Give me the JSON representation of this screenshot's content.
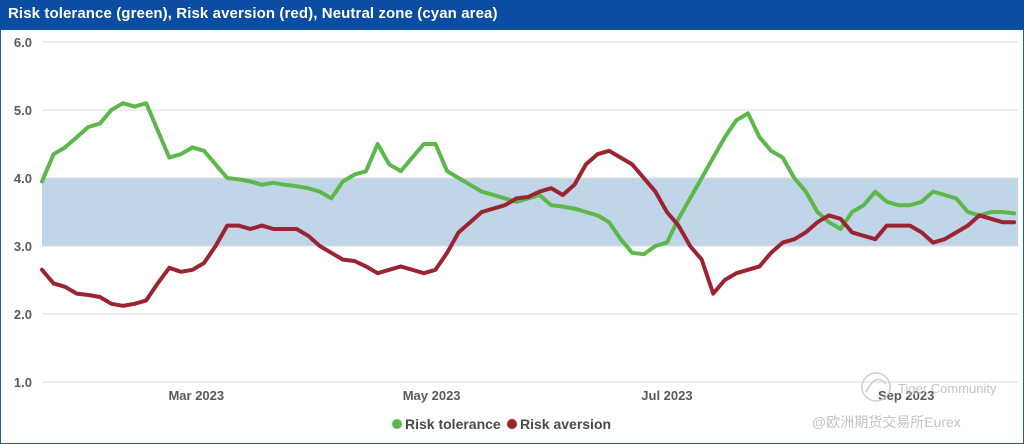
{
  "title": "Risk tolerance (green), Risk aversion (red), Neutral zone (cyan area)",
  "colors": {
    "title_bg": "#0a4da2",
    "green": "#5cb84b",
    "red": "#9b2433",
    "band": "#c1d5e8",
    "grid": "#dcdcdc"
  },
  "watermark": {
    "line1": "Tiger Community",
    "line2": "@欧洲期货交易所Eurex"
  },
  "chart_data": {
    "type": "line",
    "ylim": [
      1.0,
      6.0
    ],
    "y_ticks": [
      {
        "label": "1.0",
        "value": 1.0
      },
      {
        "label": "2.0",
        "value": 2.0
      },
      {
        "label": "3.0",
        "value": 3.0
      },
      {
        "label": "4.0",
        "value": 4.0
      },
      {
        "label": "5.0",
        "value": 5.0
      },
      {
        "label": "6.0",
        "value": 6.0
      }
    ],
    "xlim": [
      "2023-01-20",
      "2023-09-30"
    ],
    "x_ticks": [
      {
        "label": "Mar 2023",
        "date": "2023-03-01"
      },
      {
        "label": "May 2023",
        "date": "2023-05-01"
      },
      {
        "label": "Jul 2023",
        "date": "2023-07-01"
      },
      {
        "label": "Sep 2023",
        "date": "2023-09-01"
      }
    ],
    "neutral_zone": [
      3.0,
      4.0
    ],
    "grid": true,
    "legend_position": "bottom-center",
    "series": [
      {
        "name": "Risk tolerance",
        "color": "#5cb84b",
        "x": [
          "2023-01-20",
          "2023-01-23",
          "2023-01-26",
          "2023-01-29",
          "2023-02-01",
          "2023-02-04",
          "2023-02-07",
          "2023-02-10",
          "2023-02-13",
          "2023-02-16",
          "2023-02-19",
          "2023-02-22",
          "2023-02-25",
          "2023-02-28",
          "2023-03-03",
          "2023-03-06",
          "2023-03-09",
          "2023-03-12",
          "2023-03-15",
          "2023-03-18",
          "2023-03-21",
          "2023-03-24",
          "2023-03-27",
          "2023-03-30",
          "2023-04-02",
          "2023-04-05",
          "2023-04-08",
          "2023-04-11",
          "2023-04-14",
          "2023-04-17",
          "2023-04-20",
          "2023-04-23",
          "2023-04-26",
          "2023-04-29",
          "2023-05-02",
          "2023-05-05",
          "2023-05-08",
          "2023-05-11",
          "2023-05-14",
          "2023-05-17",
          "2023-05-20",
          "2023-05-23",
          "2023-05-26",
          "2023-05-29",
          "2023-06-01",
          "2023-06-04",
          "2023-06-07",
          "2023-06-10",
          "2023-06-13",
          "2023-06-16",
          "2023-06-19",
          "2023-06-22",
          "2023-06-25",
          "2023-06-28",
          "2023-07-01",
          "2023-07-04",
          "2023-07-07",
          "2023-07-10",
          "2023-07-13",
          "2023-07-16",
          "2023-07-19",
          "2023-07-22",
          "2023-07-25",
          "2023-07-28",
          "2023-07-31",
          "2023-08-03",
          "2023-08-06",
          "2023-08-09",
          "2023-08-12",
          "2023-08-15",
          "2023-08-18",
          "2023-08-21",
          "2023-08-24",
          "2023-08-27",
          "2023-08-30",
          "2023-09-02",
          "2023-09-05",
          "2023-09-08",
          "2023-09-11",
          "2023-09-14",
          "2023-09-17",
          "2023-09-20",
          "2023-09-23",
          "2023-09-26",
          "2023-09-29"
        ],
        "values": [
          3.95,
          4.35,
          4.45,
          4.6,
          4.75,
          4.8,
          5.0,
          5.1,
          5.05,
          5.1,
          4.7,
          4.3,
          4.35,
          4.45,
          4.4,
          4.2,
          4.0,
          3.98,
          3.95,
          3.9,
          3.93,
          3.9,
          3.88,
          3.85,
          3.8,
          3.7,
          3.95,
          4.05,
          4.1,
          4.5,
          4.2,
          4.1,
          4.3,
          4.5,
          4.5,
          4.1,
          4.0,
          3.9,
          3.8,
          3.75,
          3.7,
          3.65,
          3.7,
          3.75,
          3.6,
          3.58,
          3.55,
          3.5,
          3.45,
          3.35,
          3.1,
          2.9,
          2.88,
          3.0,
          3.05,
          3.4,
          3.7,
          4.0,
          4.3,
          4.6,
          4.85,
          4.95,
          4.6,
          4.4,
          4.3,
          4.0,
          3.8,
          3.5,
          3.35,
          3.25,
          3.5,
          3.6,
          3.8,
          3.65,
          3.6,
          3.6,
          3.65,
          3.8,
          3.75,
          3.7,
          3.5,
          3.45,
          3.5,
          3.5,
          3.48
        ]
      },
      {
        "name": "Risk aversion",
        "color": "#9b2433",
        "x": [
          "2023-01-20",
          "2023-01-23",
          "2023-01-26",
          "2023-01-29",
          "2023-02-01",
          "2023-02-04",
          "2023-02-07",
          "2023-02-10",
          "2023-02-13",
          "2023-02-16",
          "2023-02-19",
          "2023-02-22",
          "2023-02-25",
          "2023-02-28",
          "2023-03-03",
          "2023-03-06",
          "2023-03-09",
          "2023-03-12",
          "2023-03-15",
          "2023-03-18",
          "2023-03-21",
          "2023-03-24",
          "2023-03-27",
          "2023-03-30",
          "2023-04-02",
          "2023-04-05",
          "2023-04-08",
          "2023-04-11",
          "2023-04-14",
          "2023-04-17",
          "2023-04-20",
          "2023-04-23",
          "2023-04-26",
          "2023-04-29",
          "2023-05-02",
          "2023-05-05",
          "2023-05-08",
          "2023-05-11",
          "2023-05-14",
          "2023-05-17",
          "2023-05-20",
          "2023-05-23",
          "2023-05-26",
          "2023-05-29",
          "2023-06-01",
          "2023-06-04",
          "2023-06-07",
          "2023-06-10",
          "2023-06-13",
          "2023-06-16",
          "2023-06-19",
          "2023-06-22",
          "2023-06-25",
          "2023-06-28",
          "2023-07-01",
          "2023-07-04",
          "2023-07-07",
          "2023-07-10",
          "2023-07-13",
          "2023-07-16",
          "2023-07-19",
          "2023-07-22",
          "2023-07-25",
          "2023-07-28",
          "2023-07-31",
          "2023-08-03",
          "2023-08-06",
          "2023-08-09",
          "2023-08-12",
          "2023-08-15",
          "2023-08-18",
          "2023-08-21",
          "2023-08-24",
          "2023-08-27",
          "2023-08-30",
          "2023-09-02",
          "2023-09-05",
          "2023-09-08",
          "2023-09-11",
          "2023-09-14",
          "2023-09-17",
          "2023-09-20",
          "2023-09-23",
          "2023-09-26",
          "2023-09-29"
        ],
        "values": [
          2.65,
          2.45,
          2.4,
          2.3,
          2.28,
          2.25,
          2.15,
          2.12,
          2.15,
          2.2,
          2.45,
          2.68,
          2.62,
          2.65,
          2.75,
          3.0,
          3.3,
          3.3,
          3.25,
          3.3,
          3.25,
          3.25,
          3.25,
          3.15,
          3.0,
          2.9,
          2.8,
          2.78,
          2.7,
          2.6,
          2.65,
          2.7,
          2.65,
          2.6,
          2.65,
          2.9,
          3.2,
          3.35,
          3.5,
          3.55,
          3.6,
          3.7,
          3.72,
          3.8,
          3.85,
          3.75,
          3.9,
          4.2,
          4.35,
          4.4,
          4.3,
          4.2,
          4.0,
          3.8,
          3.5,
          3.3,
          3.0,
          2.8,
          2.3,
          2.5,
          2.6,
          2.65,
          2.7,
          2.9,
          3.05,
          3.1,
          3.2,
          3.35,
          3.45,
          3.4,
          3.2,
          3.15,
          3.1,
          3.3,
          3.3,
          3.3,
          3.2,
          3.05,
          3.1,
          3.2,
          3.3,
          3.45,
          3.4,
          3.35,
          3.35
        ]
      }
    ]
  }
}
